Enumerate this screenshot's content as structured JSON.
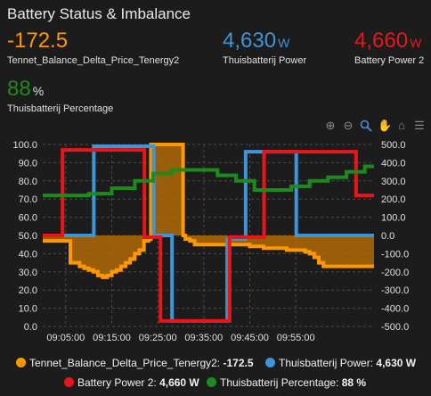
{
  "header": {
    "title": "Battery Status & Imbalance"
  },
  "stats": [
    {
      "value": "-172.5",
      "unit": "",
      "label": "Tennet_Balance_Delta_Price_Tenergy2",
      "color": "#ff9800"
    },
    {
      "value": "4,630",
      "unit": "W",
      "label": "Thuisbatterij Power",
      "color": "#3e95d8"
    },
    {
      "value": "4,660",
      "unit": "W",
      "label": "Battery Power 2",
      "color": "#e8161b"
    },
    {
      "value": "88",
      "unit": "%",
      "label": "Thuisbatterij Percentage",
      "color": "#1d8a1d"
    }
  ],
  "toolbar": [
    "zoom-in-icon",
    "zoom-out-icon",
    "magnifier-icon",
    "pan-hand-icon",
    "home-icon",
    "menu-icon"
  ],
  "legend": [
    {
      "name": "Tennet_Balance_Delta_Price_Tenergy2:",
      "value": "-172.5",
      "color": "#ff9800"
    },
    {
      "name": "Thuisbatterij Power:",
      "value": "4,630 W",
      "color": "#3e95d8"
    },
    {
      "name": "Battery Power 2:",
      "value": "4,660 W",
      "color": "#e8161b"
    },
    {
      "name": "Thuisbatterij Percentage:",
      "value": "88 %",
      "color": "#1d8a1d"
    }
  ],
  "chart_data": {
    "type": "line",
    "x_unit": "minutes after 09:00",
    "xlim": [
      0,
      72
    ],
    "x_ticks": [
      "09:05:00",
      "09:15:00",
      "09:25:00",
      "09:35:00",
      "09:45:00",
      "09:55:00"
    ],
    "left_axis": {
      "ylim": [
        0,
        100
      ],
      "ticks": [
        "0.0",
        "10.0",
        "20.0",
        "30.0",
        "40.0",
        "50.0",
        "60.0",
        "70.0",
        "80.0",
        "90.0",
        "100.0"
      ]
    },
    "right_axis": {
      "ylim": [
        -500,
        500
      ],
      "ticks": [
        "-500.0",
        "-400.0",
        "-300.0",
        "-200.0",
        "-100.0",
        "0.0",
        "100.0",
        "200.0",
        "300.0",
        "400.0",
        "500.0"
      ]
    },
    "grid": true,
    "legend_position": "bottom",
    "series": [
      {
        "name": "Tennet_Balance_Delta_Price_Tenergy2",
        "axis": "right",
        "color": "#ff9800",
        "fill": "#b06a08",
        "step": true,
        "x": [
          0,
          4.5,
          5,
          6,
          7,
          8,
          9,
          10,
          11,
          12,
          13,
          14,
          15,
          16,
          17,
          18,
          19,
          20,
          21,
          22,
          23,
          23.5,
          30,
          30.5,
          31,
          32,
          33,
          34,
          35,
          36,
          37,
          38,
          39,
          40,
          41,
          42,
          43,
          44,
          45,
          46,
          47,
          48,
          49,
          50,
          51,
          52,
          53,
          54,
          55,
          56,
          57,
          58,
          59,
          60,
          61,
          62,
          63,
          64,
          65,
          66,
          67,
          68,
          69,
          70,
          71,
          72
        ],
        "y": [
          -30,
          -30,
          -30,
          -150,
          -150,
          -170,
          -180,
          -190,
          -200,
          -220,
          -230,
          -220,
          -200,
          -190,
          -170,
          -150,
          -130,
          -100,
          -80,
          -30,
          -20,
          500,
          500,
          0,
          -20,
          -30,
          -50,
          -50,
          -50,
          -50,
          -50,
          -50,
          -50,
          -50,
          -50,
          -50,
          -50,
          -50,
          -60,
          -60,
          -60,
          -70,
          -70,
          -70,
          -70,
          -70,
          -80,
          -80,
          -80,
          -80,
          -90,
          -100,
          -120,
          -150,
          -170,
          -170,
          -170,
          -170,
          -170,
          -170,
          -170,
          -170,
          -170,
          -170,
          -170,
          -170
        ]
      },
      {
        "name": "Thuisbatterij Power",
        "axis": "right",
        "color": "#3e95d8",
        "step": true,
        "x": [
          0,
          5.6,
          11,
          11.1,
          24,
          24.1,
          28,
          28.1,
          40,
          40.1,
          44,
          44.1,
          55,
          55.1,
          72
        ],
        "y": [
          0,
          0,
          0,
          490,
          490,
          0,
          0,
          -470,
          -470,
          -20,
          -20,
          460,
          460,
          0,
          0
        ]
      },
      {
        "name": "Battery Power 2",
        "axis": "right",
        "color": "#e8161b",
        "step": true,
        "x": [
          0,
          4.2,
          4.3,
          22,
          22.1,
          25.5,
          25.6,
          40.5,
          40.6,
          48,
          48.1,
          68,
          68.1,
          72
        ],
        "y": [
          0,
          0,
          470,
          470,
          -10,
          -10,
          -470,
          -470,
          -10,
          -10,
          460,
          460,
          220,
          220
        ]
      },
      {
        "name": "Thuisbatterij Percentage",
        "axis": "left",
        "color": "#1d8a1d",
        "step": true,
        "x": [
          0,
          5,
          10,
          15,
          20,
          24,
          28,
          34,
          38,
          42,
          46,
          50,
          54,
          58,
          62,
          66,
          70,
          72
        ],
        "y": [
          72,
          72,
          73,
          76,
          80,
          84,
          86,
          86,
          83,
          80,
          75,
          75,
          77,
          80,
          82,
          85,
          88,
          88
        ]
      }
    ]
  }
}
